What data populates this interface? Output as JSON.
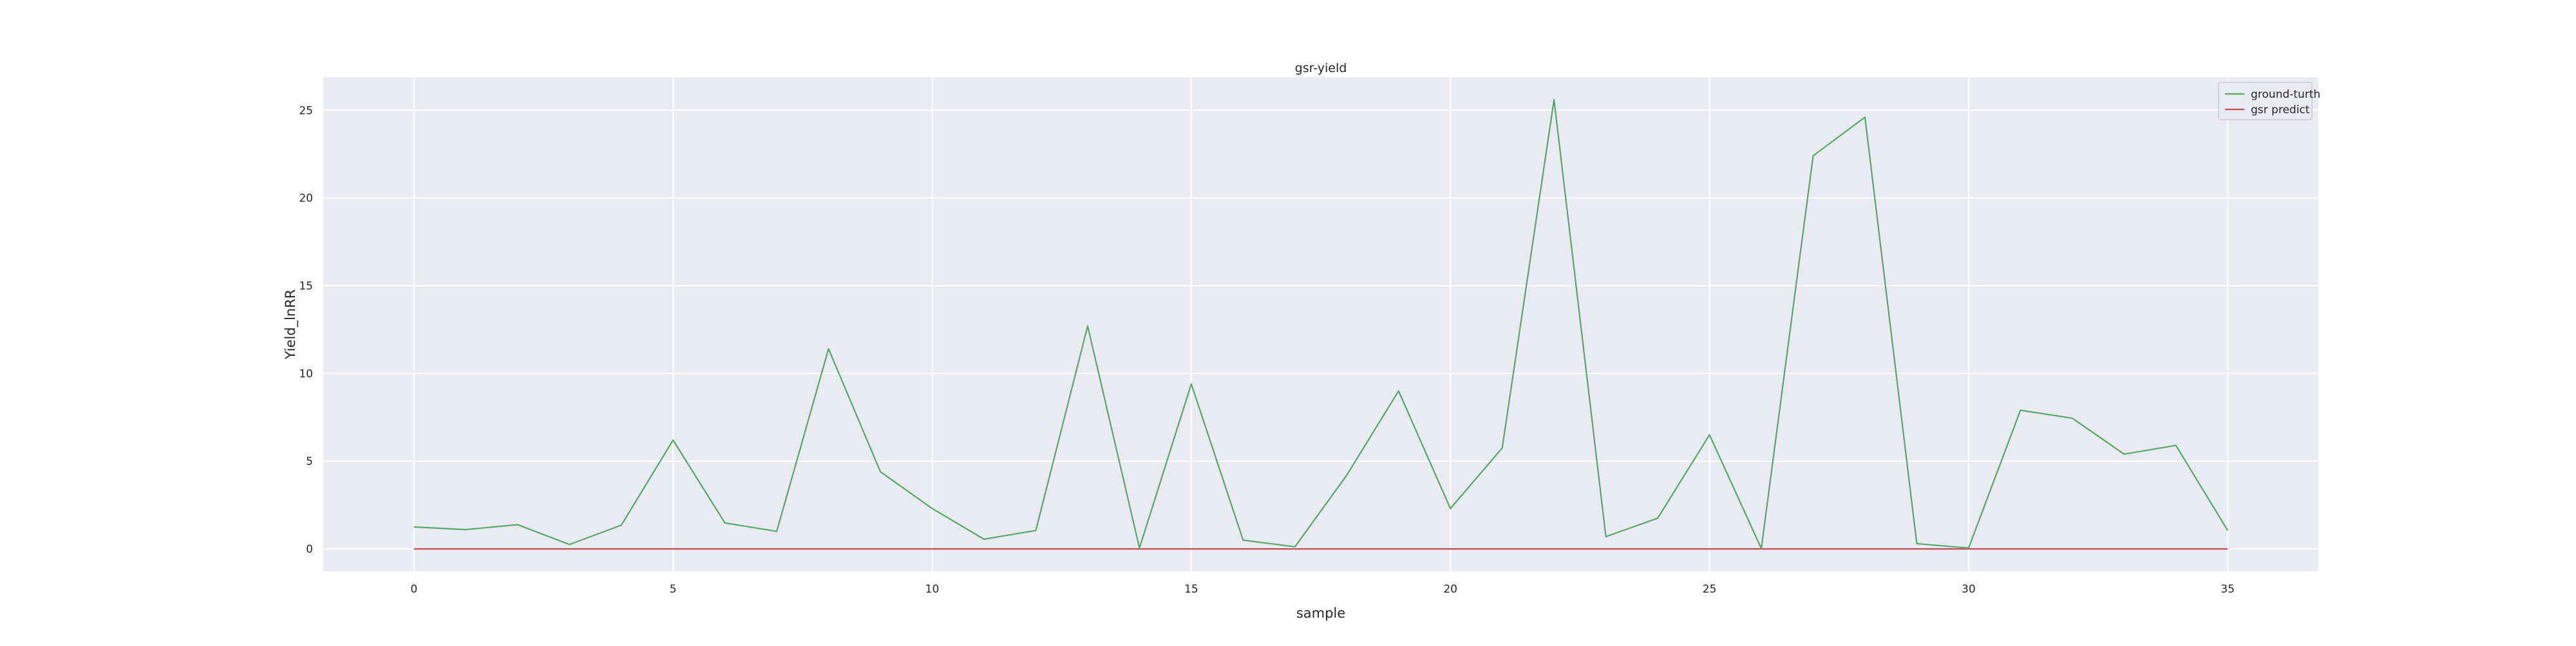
{
  "chart_data": {
    "type": "line",
    "title": "gsr-yield",
    "xlabel": "sample",
    "ylabel": "Yield_lnRR",
    "x": [
      0,
      1,
      2,
      3,
      4,
      5,
      6,
      7,
      8,
      9,
      10,
      11,
      12,
      13,
      14,
      15,
      16,
      17,
      18,
      19,
      20,
      21,
      22,
      23,
      24,
      25,
      26,
      27,
      28,
      29,
      30,
      31,
      32,
      33,
      34,
      35
    ],
    "series": [
      {
        "name": "ground-turth",
        "color": "#55a868",
        "values": [
          1.25,
          1.1,
          1.38,
          0.25,
          1.35,
          6.2,
          1.48,
          1.0,
          11.4,
          4.4,
          2.3,
          0.55,
          1.05,
          12.7,
          0.05,
          9.4,
          0.5,
          0.12,
          4.2,
          9.0,
          2.3,
          5.75,
          25.6,
          0.7,
          1.75,
          6.5,
          0.02,
          22.4,
          24.6,
          0.3,
          0.05,
          7.9,
          7.45,
          5.4,
          5.9,
          1.05
        ]
      },
      {
        "name": "gsr predict",
        "color": "#c44e52",
        "values": [
          0,
          0,
          0,
          0,
          0,
          0,
          0,
          0,
          0,
          0,
          0,
          0,
          0,
          0,
          0,
          0,
          0,
          0,
          0,
          0,
          0,
          0,
          0,
          0,
          0,
          0,
          0,
          0,
          0,
          0,
          0,
          0,
          0,
          0,
          0,
          0
        ]
      }
    ],
    "xlim": [
      -1.75,
      36.75
    ],
    "ylim": [
      -1.28,
      26.88
    ],
    "xticks": [
      0,
      5,
      10,
      15,
      20,
      25,
      30,
      35
    ],
    "yticks": [
      0,
      5,
      10,
      15,
      20,
      25
    ],
    "grid": true,
    "legend_position": "top-right",
    "background_color": "#eaeaf2",
    "grid_color": "#ffffff"
  }
}
